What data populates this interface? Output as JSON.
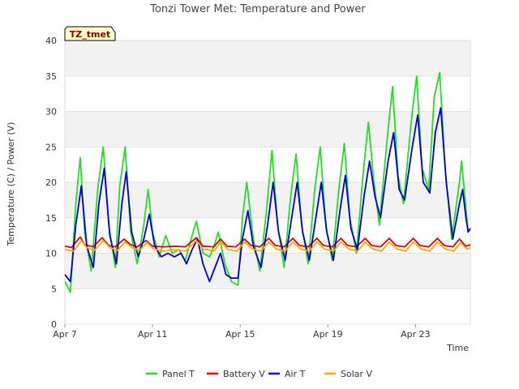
{
  "chart_data": {
    "type": "line",
    "title": "Tonzi Tower Met: Temperature and Power",
    "tag": "TZ_tmet",
    "xlabel": "Time",
    "ylabel": "Temperature (C) / Power (V)",
    "ylim": [
      0,
      40
    ],
    "yticks": [
      0,
      5,
      10,
      15,
      20,
      25,
      30,
      35,
      40
    ],
    "xlim": [
      0,
      18.5
    ],
    "xticks": [
      {
        "day": 0,
        "label": "Apr 7"
      },
      {
        "day": 4,
        "label": "Apr 11"
      },
      {
        "day": 8,
        "label": "Apr 15"
      },
      {
        "day": 12,
        "label": "Apr 19"
      },
      {
        "day": 16,
        "label": "Apr 23"
      }
    ],
    "grid": true,
    "legend_position": "bottom",
    "series": [
      {
        "name": "Panel T",
        "color": "#22dd22",
        "points": [
          [
            0.0,
            6.0
          ],
          [
            0.25,
            4.5
          ],
          [
            0.5,
            17.0
          ],
          [
            0.7,
            23.5
          ],
          [
            0.9,
            13.0
          ],
          [
            1.2,
            7.5
          ],
          [
            1.5,
            19.0
          ],
          [
            1.75,
            25.0
          ],
          [
            2.0,
            14.0
          ],
          [
            2.3,
            8.0
          ],
          [
            2.5,
            19.5
          ],
          [
            2.75,
            25.0
          ],
          [
            3.0,
            13.0
          ],
          [
            3.3,
            8.5
          ],
          [
            3.6,
            14.0
          ],
          [
            3.8,
            19.0
          ],
          [
            4.0,
            13.0
          ],
          [
            4.3,
            9.5
          ],
          [
            4.6,
            12.5
          ],
          [
            4.9,
            10.0
          ],
          [
            5.2,
            10.5
          ],
          [
            5.5,
            9.0
          ],
          [
            5.8,
            12.5
          ],
          [
            6.0,
            14.5
          ],
          [
            6.3,
            10.0
          ],
          [
            6.6,
            9.5
          ],
          [
            6.8,
            11.0
          ],
          [
            7.0,
            13.0
          ],
          [
            7.3,
            8.5
          ],
          [
            7.6,
            6.0
          ],
          [
            7.9,
            5.5
          ],
          [
            8.1,
            15.0
          ],
          [
            8.3,
            20.0
          ],
          [
            8.6,
            12.0
          ],
          [
            8.9,
            7.5
          ],
          [
            9.2,
            16.0
          ],
          [
            9.45,
            24.5
          ],
          [
            9.7,
            14.0
          ],
          [
            10.0,
            8.0
          ],
          [
            10.3,
            18.0
          ],
          [
            10.55,
            24.0
          ],
          [
            10.8,
            14.0
          ],
          [
            11.1,
            8.5
          ],
          [
            11.4,
            19.0
          ],
          [
            11.65,
            25.0
          ],
          [
            11.9,
            14.0
          ],
          [
            12.2,
            9.0
          ],
          [
            12.5,
            19.0
          ],
          [
            12.75,
            25.5
          ],
          [
            13.0,
            15.0
          ],
          [
            13.3,
            10.0
          ],
          [
            13.6,
            21.0
          ],
          [
            13.85,
            28.5
          ],
          [
            14.1,
            20.0
          ],
          [
            14.35,
            14.0
          ],
          [
            14.7,
            26.0
          ],
          [
            14.95,
            33.5
          ],
          [
            15.2,
            21.0
          ],
          [
            15.45,
            17.0
          ],
          [
            15.8,
            28.5
          ],
          [
            16.05,
            35.0
          ],
          [
            16.3,
            22.0
          ],
          [
            16.6,
            19.0
          ],
          [
            16.85,
            32.0
          ],
          [
            17.1,
            35.5
          ],
          [
            17.35,
            22.0
          ],
          [
            17.65,
            12.0
          ],
          [
            18.0,
            20.0
          ],
          [
            18.1,
            23.0
          ],
          [
            18.25,
            18.0
          ],
          [
            18.4,
            13.0
          ],
          [
            18.5,
            13.5
          ]
        ]
      },
      {
        "name": "Battery V",
        "color": "#dd0000",
        "points": [
          [
            0.0,
            11.0
          ],
          [
            0.3,
            10.8
          ],
          [
            0.7,
            12.3
          ],
          [
            0.9,
            11.2
          ],
          [
            1.3,
            10.9
          ],
          [
            1.7,
            12.2
          ],
          [
            2.0,
            11.1
          ],
          [
            2.3,
            10.9
          ],
          [
            2.7,
            12.0
          ],
          [
            3.0,
            11.2
          ],
          [
            3.3,
            10.9
          ],
          [
            3.7,
            11.8
          ],
          [
            4.0,
            11.0
          ],
          [
            4.5,
            10.9
          ],
          [
            5.0,
            11.0
          ],
          [
            5.5,
            10.9
          ],
          [
            6.0,
            12.2
          ],
          [
            6.3,
            11.0
          ],
          [
            6.8,
            10.9
          ],
          [
            7.1,
            12.0
          ],
          [
            7.4,
            11.0
          ],
          [
            7.8,
            10.9
          ],
          [
            8.2,
            12.0
          ],
          [
            8.5,
            11.1
          ],
          [
            8.9,
            10.9
          ],
          [
            9.3,
            12.1
          ],
          [
            9.6,
            11.1
          ],
          [
            10.0,
            10.9
          ],
          [
            10.4,
            12.1
          ],
          [
            10.7,
            11.1
          ],
          [
            11.1,
            10.9
          ],
          [
            11.5,
            12.1
          ],
          [
            11.8,
            11.1
          ],
          [
            12.2,
            10.9
          ],
          [
            12.6,
            12.1
          ],
          [
            12.9,
            11.1
          ],
          [
            13.3,
            10.9
          ],
          [
            13.7,
            12.1
          ],
          [
            14.0,
            11.1
          ],
          [
            14.4,
            10.9
          ],
          [
            14.8,
            12.1
          ],
          [
            15.1,
            11.1
          ],
          [
            15.5,
            10.9
          ],
          [
            15.9,
            12.1
          ],
          [
            16.2,
            11.1
          ],
          [
            16.6,
            10.9
          ],
          [
            17.0,
            12.1
          ],
          [
            17.3,
            11.1
          ],
          [
            17.7,
            10.9
          ],
          [
            18.0,
            12.0
          ],
          [
            18.3,
            11.0
          ],
          [
            18.5,
            11.2
          ]
        ]
      },
      {
        "name": "Air T",
        "color": "#0000cc",
        "points": [
          [
            0.0,
            7.0
          ],
          [
            0.25,
            6.0
          ],
          [
            0.5,
            14.0
          ],
          [
            0.75,
            19.5
          ],
          [
            1.0,
            11.0
          ],
          [
            1.3,
            8.0
          ],
          [
            1.55,
            17.0
          ],
          [
            1.8,
            22.0
          ],
          [
            2.05,
            12.5
          ],
          [
            2.35,
            8.5
          ],
          [
            2.6,
            17.0
          ],
          [
            2.8,
            21.5
          ],
          [
            3.05,
            13.0
          ],
          [
            3.35,
            9.5
          ],
          [
            3.6,
            12.0
          ],
          [
            3.85,
            15.5
          ],
          [
            4.1,
            11.0
          ],
          [
            4.4,
            9.5
          ],
          [
            4.7,
            10.0
          ],
          [
            5.0,
            9.5
          ],
          [
            5.3,
            10.0
          ],
          [
            5.55,
            8.5
          ],
          [
            5.8,
            10.5
          ],
          [
            6.05,
            12.0
          ],
          [
            6.3,
            8.5
          ],
          [
            6.6,
            6.0
          ],
          [
            6.85,
            8.0
          ],
          [
            7.1,
            10.0
          ],
          [
            7.35,
            7.0
          ],
          [
            7.6,
            6.5
          ],
          [
            7.9,
            6.5
          ],
          [
            8.1,
            12.0
          ],
          [
            8.35,
            16.0
          ],
          [
            8.6,
            11.0
          ],
          [
            8.95,
            8.0
          ],
          [
            9.25,
            14.0
          ],
          [
            9.5,
            20.0
          ],
          [
            9.75,
            13.0
          ],
          [
            10.05,
            9.0
          ],
          [
            10.35,
            15.0
          ],
          [
            10.6,
            20.0
          ],
          [
            10.85,
            13.0
          ],
          [
            11.15,
            9.0
          ],
          [
            11.45,
            15.0
          ],
          [
            11.7,
            20.0
          ],
          [
            11.95,
            13.0
          ],
          [
            12.25,
            9.0
          ],
          [
            12.55,
            16.0
          ],
          [
            12.8,
            21.0
          ],
          [
            13.05,
            13.5
          ],
          [
            13.35,
            10.5
          ],
          [
            13.65,
            18.0
          ],
          [
            13.9,
            23.0
          ],
          [
            14.15,
            18.0
          ],
          [
            14.4,
            15.0
          ],
          [
            14.75,
            23.0
          ],
          [
            15.0,
            27.0
          ],
          [
            15.25,
            19.0
          ],
          [
            15.5,
            17.5
          ],
          [
            15.85,
            25.0
          ],
          [
            16.1,
            29.5
          ],
          [
            16.35,
            20.0
          ],
          [
            16.65,
            18.5
          ],
          [
            16.9,
            27.0
          ],
          [
            17.15,
            30.5
          ],
          [
            17.4,
            20.0
          ],
          [
            17.7,
            12.0
          ],
          [
            18.0,
            17.0
          ],
          [
            18.15,
            19.0
          ],
          [
            18.3,
            15.0
          ],
          [
            18.4,
            13.0
          ],
          [
            18.5,
            13.5
          ]
        ]
      },
      {
        "name": "Solar V",
        "color": "#ffa500",
        "points": [
          [
            0.0,
            10.5
          ],
          [
            0.4,
            10.3
          ],
          [
            0.75,
            11.8
          ],
          [
            1.0,
            10.8
          ],
          [
            1.35,
            10.4
          ],
          [
            1.75,
            11.8
          ],
          [
            2.05,
            10.8
          ],
          [
            2.4,
            10.4
          ],
          [
            2.75,
            11.6
          ],
          [
            3.05,
            10.8
          ],
          [
            3.4,
            10.4
          ],
          [
            3.75,
            11.5
          ],
          [
            4.05,
            10.6
          ],
          [
            4.5,
            10.3
          ],
          [
            5.0,
            10.5
          ],
          [
            5.5,
            10.3
          ],
          [
            6.0,
            11.8
          ],
          [
            6.3,
            10.6
          ],
          [
            6.8,
            10.3
          ],
          [
            7.1,
            11.6
          ],
          [
            7.45,
            10.5
          ],
          [
            7.85,
            10.3
          ],
          [
            8.2,
            11.6
          ],
          [
            8.55,
            10.6
          ],
          [
            8.95,
            10.3
          ],
          [
            9.3,
            11.6
          ],
          [
            9.65,
            10.6
          ],
          [
            10.05,
            10.3
          ],
          [
            10.4,
            11.6
          ],
          [
            10.75,
            10.6
          ],
          [
            11.15,
            10.3
          ],
          [
            11.5,
            11.6
          ],
          [
            11.85,
            10.6
          ],
          [
            12.25,
            10.3
          ],
          [
            12.6,
            11.6
          ],
          [
            12.95,
            10.6
          ],
          [
            13.35,
            10.3
          ],
          [
            13.7,
            11.6
          ],
          [
            14.05,
            10.6
          ],
          [
            14.45,
            10.3
          ],
          [
            14.8,
            11.6
          ],
          [
            15.15,
            10.6
          ],
          [
            15.55,
            10.3
          ],
          [
            15.9,
            11.6
          ],
          [
            16.25,
            10.6
          ],
          [
            16.65,
            10.3
          ],
          [
            17.0,
            11.6
          ],
          [
            17.35,
            10.6
          ],
          [
            17.75,
            10.3
          ],
          [
            18.05,
            11.5
          ],
          [
            18.35,
            10.6
          ],
          [
            18.5,
            10.8
          ]
        ]
      }
    ]
  }
}
